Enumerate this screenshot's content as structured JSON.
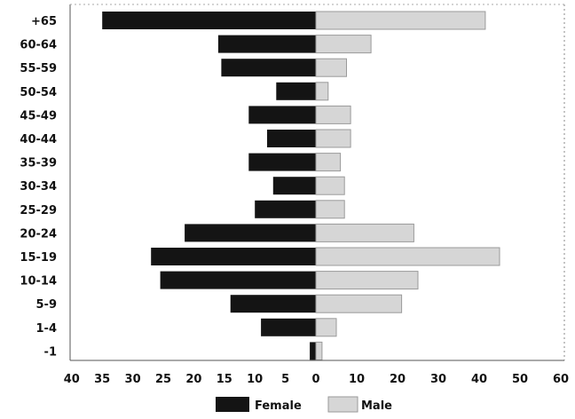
{
  "chart_data": {
    "type": "bar",
    "orientation": "horizontal",
    "layout": "population-pyramid",
    "categories": [
      "+65",
      "60-64",
      "55-59",
      "50-54",
      "45-49",
      "40-44",
      "35-39",
      "30-34",
      "25-29",
      "20-24",
      "15-19",
      "10-14",
      "5-9",
      "1-4",
      "-1"
    ],
    "series": [
      {
        "name": "Female",
        "side": "left",
        "color": "#141414",
        "values": [
          35,
          16,
          15.5,
          6.5,
          11,
          8,
          11,
          7,
          10,
          21.5,
          27,
          25.5,
          14,
          9,
          1
        ]
      },
      {
        "name": "Male",
        "side": "right",
        "color": "#d6d6d6",
        "values": [
          41.5,
          13.5,
          7.5,
          3,
          8.5,
          8.5,
          6,
          7,
          7,
          24,
          45,
          25,
          21,
          5,
          1.5
        ]
      }
    ],
    "xticks": [
      "40",
      "35",
      "30",
      "25",
      "20",
      "15",
      "10",
      "5",
      "0",
      "10",
      "20",
      "30",
      "40",
      "50",
      "60"
    ],
    "legend": {
      "placement": "bottom-center",
      "entries": [
        "Female",
        "Male"
      ]
    },
    "grid": false
  }
}
